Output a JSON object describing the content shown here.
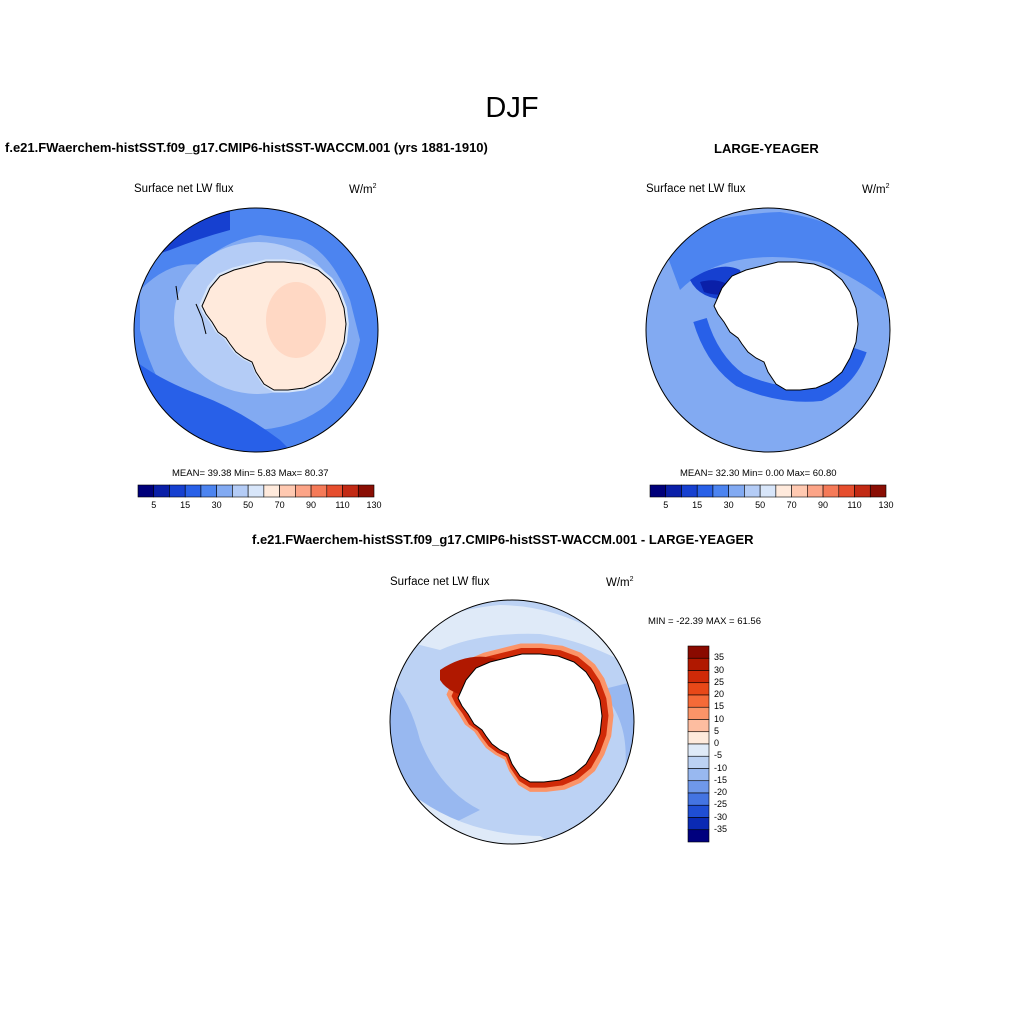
{
  "figure": {
    "title": "DJF"
  },
  "panels": {
    "test": {
      "title": "f.e21.FWaerchem-histSST.f09_g17.CMIP6-histSST-WACCM.001 (yrs 1881-1910)",
      "variable": "Surface net LW flux",
      "units": "W/m",
      "units_sup": "2",
      "stats": "MEAN=  39.38  Min=   5.83  Max=  80.37",
      "colorbar_ticks": [
        "5",
        "15",
        "30",
        "50",
        "70",
        "90",
        "110",
        "130"
      ],
      "colors": [
        "#00007a",
        "#0a1fa8",
        "#1640d0",
        "#2860e8",
        "#4c84f0",
        "#82aaf2",
        "#b4ccf6",
        "#d8e6fa",
        "#ffeadc",
        "#ffc9b1",
        "#fca487",
        "#f57a58",
        "#e64e2e",
        "#c22a14",
        "#8a0e04"
      ]
    },
    "ref": {
      "title": "LARGE-YEAGER",
      "variable": "Surface net LW flux",
      "units": "W/m",
      "units_sup": "2",
      "stats": "MEAN=  32.30  Min=   0.00  Max=  60.80",
      "colorbar_ticks": [
        "5",
        "15",
        "30",
        "50",
        "70",
        "90",
        "110",
        "130"
      ]
    },
    "diff": {
      "title": "f.e21.FWaerchem-histSST.f09_g17.CMIP6-histSST-WACCM.001 - LARGE-YEAGER",
      "variable": "Surface net LW flux",
      "units": "W/m",
      "units_sup": "2",
      "stats": "MIN = -22.39 MAX =  61.56",
      "colorbar_ticks": [
        "35",
        "30",
        "25",
        "20",
        "15",
        "10",
        "5",
        "0",
        "-5",
        "-10",
        "-15",
        "-20",
        "-25",
        "-30",
        "-35"
      ],
      "colors": [
        "#8a0a00",
        "#b01800",
        "#d02a08",
        "#e84818",
        "#f56a38",
        "#fb9468",
        "#fdbda0",
        "#feeadc",
        "#dfeaf8",
        "#bcd2f4",
        "#98b8f0",
        "#6f98ea",
        "#4474e2",
        "#1f4ed4",
        "#0a2ab4",
        "#00007e"
      ]
    }
  }
}
